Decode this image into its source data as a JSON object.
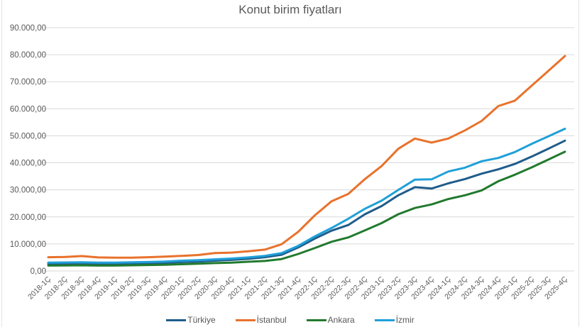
{
  "chart_data": {
    "type": "line",
    "title": "Konut birim fiyatları",
    "xlabel": "",
    "ylabel": "",
    "ylim": [
      0,
      90000
    ],
    "yticks": [
      0,
      10000,
      20000,
      30000,
      40000,
      50000,
      60000,
      70000,
      80000,
      90000
    ],
    "ytick_labels": [
      "0,00",
      "10.000,00",
      "20.000,00",
      "30.000,00",
      "40.000,00",
      "50.000,00",
      "60.000,00",
      "70.000,00",
      "80.000,00",
      "90.000,00"
    ],
    "grid": true,
    "legend_position": "bottom",
    "categories": [
      "2018-1Ç",
      "2018-2Ç",
      "2018-3Ç",
      "2018-4Ç",
      "2019-1Ç",
      "2019-2Ç",
      "2019-3Ç",
      "2019-4Ç",
      "2020-1Ç",
      "2020-2Ç",
      "2020-3Ç",
      "2020-4Ç",
      "2021-1Ç",
      "2021-2Ç",
      "2021-3Ç",
      "2021-4Ç",
      "2022-1Ç",
      "2022-2Ç",
      "2022-3Ç",
      "2022-4Ç",
      "2023-1Ç",
      "2023-2Ç",
      "2023-3Ç",
      "2023-4Ç",
      "2024-1Ç",
      "2024-2Ç",
      "2024-3Ç",
      "2024-4Ç",
      "2025-1Ç",
      "2025-2Ç",
      "2025-3Ç",
      "2025-4Ç"
    ],
    "series": [
      {
        "name": "Türkiye",
        "color": "#1f5c8b",
        "values": [
          2600,
          2650,
          2700,
          2600,
          2600,
          2700,
          2800,
          3000,
          3300,
          3500,
          3800,
          4100,
          4500,
          5100,
          6000,
          8700,
          12000,
          14900,
          17000,
          21000,
          24000,
          28000,
          31000,
          30500,
          32400,
          34000,
          36000,
          37600,
          39600,
          42300,
          45200,
          48200
        ]
      },
      {
        "name": "İstanbul",
        "color": "#e8722c",
        "values": [
          5100,
          5200,
          5500,
          5000,
          4900,
          4900,
          5100,
          5300,
          5600,
          5900,
          6600,
          6800,
          7300,
          7900,
          9900,
          14500,
          20600,
          25800,
          28500,
          34000,
          38800,
          45200,
          49000,
          47500,
          49000,
          52000,
          55500,
          61000,
          63000,
          68500,
          74000,
          79500
        ]
      },
      {
        "name": "Ankara",
        "color": "#217a2e",
        "values": [
          2000,
          2050,
          2100,
          2000,
          2000,
          2100,
          2200,
          2300,
          2500,
          2700,
          2900,
          3100,
          3400,
          3700,
          4400,
          6300,
          8500,
          10800,
          12400,
          15000,
          17700,
          21000,
          23300,
          24600,
          26600,
          28000,
          29800,
          33200,
          35600,
          38300,
          41200,
          44100
        ]
      },
      {
        "name": "İzmir",
        "color": "#1fa0d8",
        "values": [
          3100,
          3150,
          3200,
          3100,
          3100,
          3200,
          3300,
          3500,
          3800,
          4000,
          4300,
          4600,
          5000,
          5600,
          6600,
          9300,
          12800,
          15900,
          19300,
          23000,
          26000,
          30000,
          33800,
          33900,
          36800,
          38200,
          40600,
          41800,
          44000,
          47000,
          49800,
          52600
        ]
      }
    ]
  }
}
